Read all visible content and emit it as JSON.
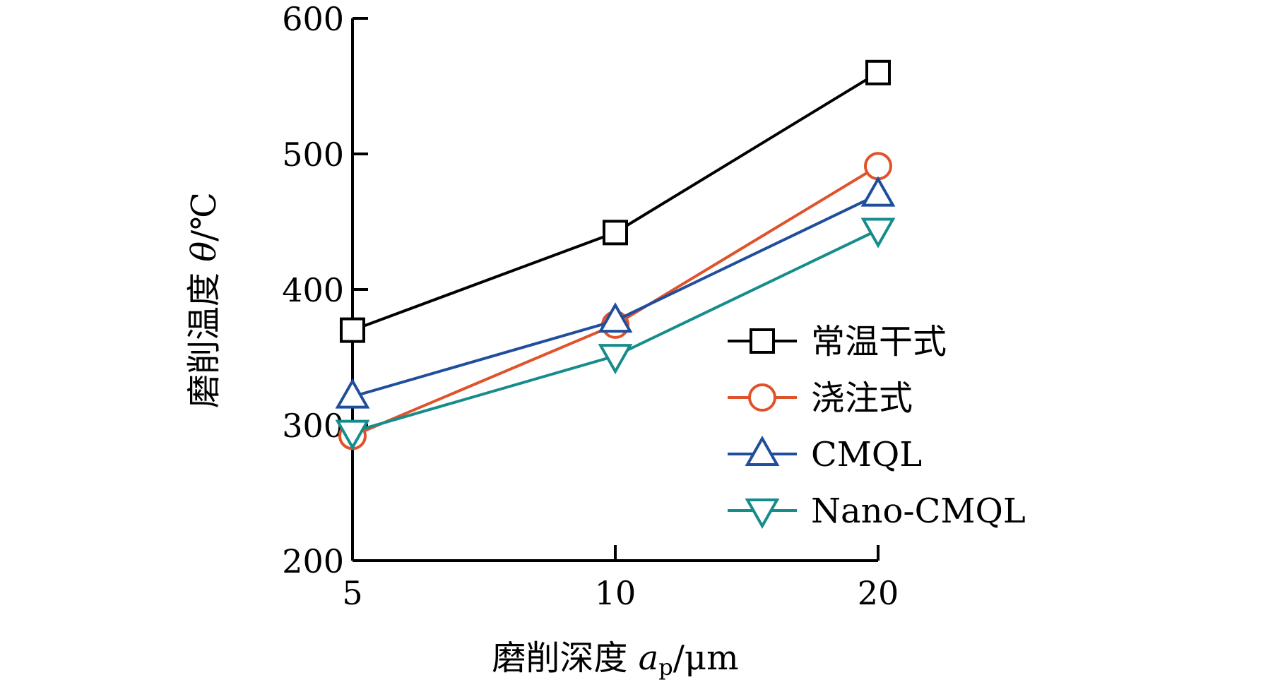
{
  "chart_data": {
    "type": "line",
    "title": "",
    "xlabel": "磨削深度 a_p/μm",
    "xlabel_parts": {
      "prefix": "磨削深度 ",
      "var": "a",
      "sub": "p",
      "unit": "/μm"
    },
    "ylabel": "磨削温度 θ/℃",
    "ylabel_parts": {
      "prefix": "磨削温度 ",
      "var": "θ",
      "unit": "/℃"
    },
    "x": [
      5,
      10,
      20
    ],
    "x_tick_labels": [
      "5",
      "10",
      "20"
    ],
    "ylim": [
      200,
      600
    ],
    "y_ticks": [
      200,
      300,
      400,
      500,
      600
    ],
    "y_tick_labels": [
      "200",
      "300",
      "400",
      "500",
      "600"
    ],
    "grid": false,
    "legend_position": "bottom-right",
    "series": [
      {
        "name": "常温干式",
        "values": [
          370,
          442,
          560
        ],
        "color": "#000000",
        "marker": "square"
      },
      {
        "name": "浇注式",
        "values": [
          292,
          374,
          491
        ],
        "color": "#e0522a",
        "marker": "circle"
      },
      {
        "name": "CMQL",
        "values": [
          321,
          377,
          470
        ],
        "color": "#1f4e9c",
        "marker": "triangle-up"
      },
      {
        "name": "Nano-CMQL",
        "values": [
          295,
          351,
          444
        ],
        "color": "#178c8c",
        "marker": "triangle-down"
      }
    ]
  }
}
